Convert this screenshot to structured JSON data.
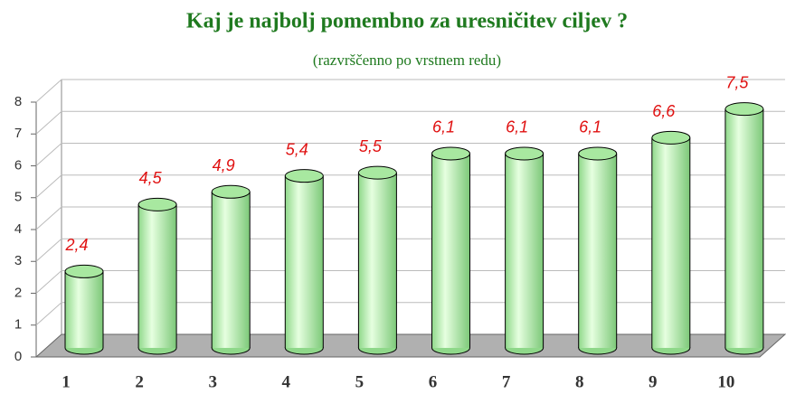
{
  "chart_data": {
    "type": "bar",
    "title": "Kaj je najbolj pomembno za uresničitev ciljev ?",
    "subtitle": "(razvrščenno po vrstnem redu)",
    "categories": [
      "1",
      "2",
      "3",
      "4",
      "5",
      "6",
      "7",
      "8",
      "9",
      "10"
    ],
    "values": [
      2.4,
      4.5,
      4.9,
      5.4,
      5.5,
      6.1,
      6.1,
      6.1,
      6.6,
      7.5
    ],
    "value_labels": [
      "2,4",
      "4,5",
      "4,9",
      "5,4",
      "5,5",
      "6,1",
      "6,1",
      "6,1",
      "6,6",
      "7,5"
    ],
    "color": "#b8f0b0",
    "ylim": [
      0,
      8
    ],
    "yticks": [
      0,
      1,
      2,
      3,
      4,
      5,
      6,
      7,
      8
    ],
    "grid": true
  }
}
